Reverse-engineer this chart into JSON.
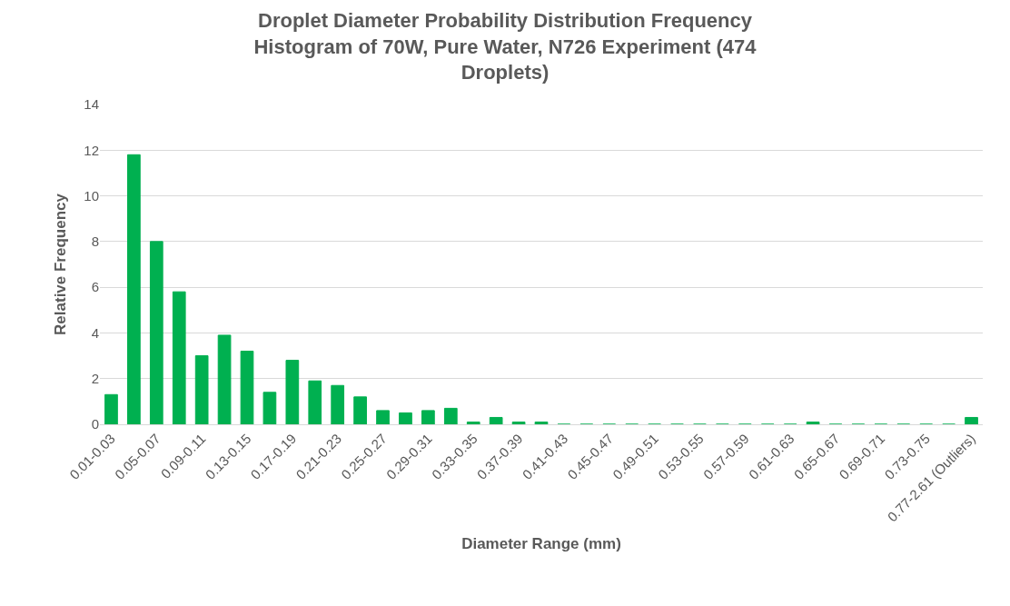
{
  "chart_data": {
    "type": "bar",
    "title": "Droplet Diameter Probability Distribution Frequency Histogram of 70W, Pure Water, N726 Experiment (474 Droplets)",
    "xlabel": "Diameter Range (mm)",
    "ylabel": "Relative Frequency",
    "categories": [
      "0.01-0.03",
      null,
      "0.05-0.07",
      null,
      "0.09-0.11",
      null,
      "0.13-0.15",
      null,
      "0.17-0.19",
      null,
      "0.21-0.23",
      null,
      "0.25-0.27",
      null,
      "0.29-0.31",
      null,
      "0.33-0.35",
      null,
      "0.37-0.39",
      null,
      "0.41-0.43",
      null,
      "0.45-0.47",
      null,
      "0.49-0.51",
      null,
      "0.53-0.55",
      null,
      "0.57-0.59",
      null,
      "0.61-0.63",
      null,
      "0.65-0.67",
      null,
      "0.69-0.71",
      null,
      "0.73-0.75",
      null,
      "0.77-2.61 (Outliers)"
    ],
    "values": [
      1.3,
      11.8,
      8.0,
      5.8,
      3.0,
      3.9,
      3.2,
      1.4,
      2.8,
      1.9,
      1.7,
      1.2,
      0.6,
      0.5,
      0.6,
      0.7,
      0.1,
      0.3,
      0.1,
      0.1,
      0,
      0,
      0,
      0,
      0,
      0,
      0,
      0,
      0,
      0,
      0,
      0.1,
      0,
      0,
      0,
      0,
      0,
      0,
      0.3
    ],
    "color": "#00b050",
    "ylim": [
      0,
      14
    ],
    "yticks": [
      0,
      2,
      4,
      6,
      8,
      10,
      12,
      14
    ],
    "grid": "y",
    "legend": false
  }
}
